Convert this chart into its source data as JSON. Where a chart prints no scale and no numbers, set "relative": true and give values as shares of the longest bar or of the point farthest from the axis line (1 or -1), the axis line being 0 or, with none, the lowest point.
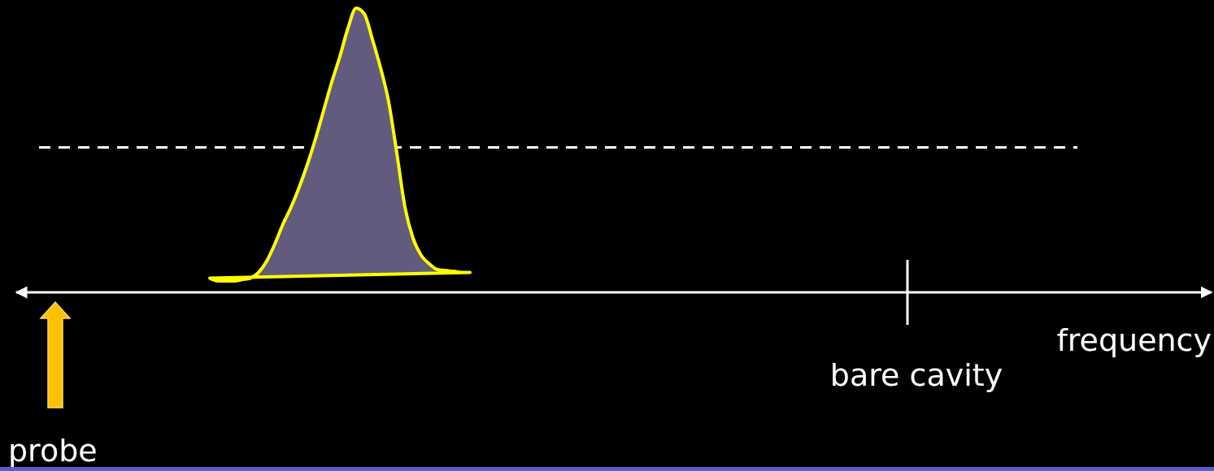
{
  "chart_data": {
    "type": "area",
    "relative": true,
    "xlabel": "frequency",
    "annotations": [
      "bare cavity",
      "probe"
    ],
    "categories": [
      null,
      null,
      null,
      null,
      null,
      null,
      null,
      null,
      null,
      null,
      null,
      null,
      null,
      null,
      null,
      null,
      null,
      null,
      null,
      null,
      null,
      null,
      null,
      null,
      null,
      null,
      null,
      null,
      null,
      null,
      null,
      null,
      null,
      null,
      null,
      null,
      null,
      null,
      null,
      null,
      null,
      null,
      null,
      null,
      null,
      null,
      null,
      null,
      null,
      null,
      null,
      null,
      null,
      null,
      null,
      null,
      null,
      null,
      null,
      null,
      null,
      null,
      null,
      null,
      null,
      null,
      null,
      null,
      null,
      null,
      null,
      null,
      null,
      null,
      null,
      null,
      null,
      null,
      null,
      null,
      null,
      null,
      null,
      null,
      null,
      null,
      null,
      null,
      null,
      null,
      null,
      null,
      null,
      null,
      null,
      null,
      null,
      null,
      null,
      null,
      null,
      null,
      null,
      null,
      null,
      null,
      null,
      null,
      null,
      null,
      null,
      null,
      null,
      null,
      null,
      null,
      null,
      null,
      null,
      null,
      null,
      null,
      null,
      null,
      null,
      null,
      null,
      null,
      null,
      null,
      null,
      null,
      null,
      null,
      null,
      null,
      null,
      null,
      null,
      null,
      null,
      null,
      null,
      null,
      null,
      null,
      null,
      null
    ],
    "series": [
      {
        "color": "#ffff00",
        "values": [
          null,
          null,
          null,
          null,
          null,
          null,
          null,
          null,
          null,
          null,
          null,
          null,
          null,
          null,
          null,
          null,
          null,
          null,
          null,
          null,
          null,
          null,
          null,
          null,
          0.05,
          0.04,
          0.04,
          0.04,
          0.045,
          0.05,
          0.07,
          0.11,
          0.17,
          0.24,
          0.3,
          0.37,
          0.45,
          0.54,
          0.64,
          0.74,
          0.83,
          0.93,
          1,
          0.98,
          0.89,
          0.79,
          0.67,
          0.49,
          0.3,
          0.19,
          0.13,
          0.1,
          0.08,
          0.077,
          0.074,
          0.07,
          0.07,
          null,
          null,
          null,
          null,
          null,
          null,
          null,
          null,
          null,
          null,
          null,
          null,
          null,
          null,
          null,
          null,
          null,
          null,
          null,
          null,
          null,
          null,
          null,
          null,
          null,
          null,
          null,
          null,
          null,
          null,
          null,
          null,
          null,
          null,
          null,
          null,
          null,
          null,
          null,
          null,
          null,
          null,
          null,
          null,
          null,
          null,
          null,
          null,
          null,
          null,
          null,
          null,
          null,
          null,
          null,
          null,
          null,
          null,
          null,
          null,
          null,
          null,
          null,
          null,
          null,
          null,
          null,
          null,
          null,
          null,
          null,
          null,
          null,
          null,
          null,
          null,
          null,
          null,
          null,
          null,
          null,
          null,
          null,
          null,
          null,
          null,
          null,
          null,
          null,
          null,
          null
        ]
      }
    ],
    "ref_lines": [
      {
        "axis": "y",
        "value": 0.51,
        "color": "#ffffff",
        "line_style": "dashed"
      }
    ]
  }
}
